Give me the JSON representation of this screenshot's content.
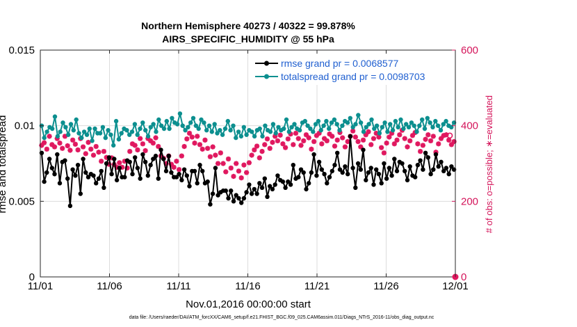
{
  "chart_data": {
    "type": "line",
    "title": [
      "Northern Hemisphere 40273 / 40322 = 99.878%",
      "AIRS_SPECIFIC_HUMIDITY @ 55 hPa"
    ],
    "xlabel": "Nov.01,2016 00:00:00 start",
    "ylabel": "rmse and totalspread",
    "ylabel_right": "# of obs: o=possible; ∗=evaluated",
    "footer": "data file: /Users/raeder/DAI/ATM_forcXX/CAM6_setup/f.e21.FHIST_BGC.f09_025.CAM6assim.011/Diags_NTrS_2016-11/obs_diag_output.nc",
    "x_ticks": [
      1,
      6,
      11,
      16,
      21,
      26,
      31
    ],
    "x_tick_labels": [
      "11/01",
      "11/06",
      "11/11",
      "11/16",
      "11/21",
      "11/26",
      "12/01"
    ],
    "xlim": [
      1,
      31
    ],
    "ylim": [
      0,
      0.015
    ],
    "y_ticks": [
      0,
      0.005,
      0.01,
      0.015
    ],
    "y_tick_labels": [
      "0",
      "0.005",
      "0.01",
      "0.015"
    ],
    "ylim_right": [
      0,
      600
    ],
    "y_ticks_right": [
      0,
      200,
      400,
      600
    ],
    "y_tick_labels_right": [
      "0",
      "200",
      "400",
      "600"
    ],
    "grid": true,
    "legend_position": "top-right",
    "series": [
      {
        "name": "rmse grand pr = 0.0068577",
        "color": "#000000",
        "axis": "left",
        "values": [
          0.0082,
          0.0063,
          0.0069,
          0.0078,
          0.0072,
          0.0068,
          0.0081,
          0.0062,
          0.0076,
          0.0077,
          0.0065,
          0.0047,
          0.0071,
          0.0067,
          0.0074,
          0.0055,
          0.0078,
          0.0069,
          0.0066,
          0.0068,
          0.0067,
          0.0062,
          0.0065,
          0.007,
          0.0059,
          0.0075,
          0.0079,
          0.0068,
          0.0078,
          0.0064,
          0.0072,
          0.0066,
          0.0066,
          0.0077,
          0.0076,
          0.0068,
          0.0079,
          0.0072,
          0.0065,
          0.0081,
          0.0076,
          0.0067,
          0.0074,
          0.0078,
          0.008,
          0.0065,
          0.0084,
          0.0078,
          0.007,
          0.008,
          0.0069,
          0.0066,
          0.0066,
          0.0068,
          0.0064,
          0.0071,
          0.0067,
          0.006,
          0.007,
          0.007,
          0.0062,
          0.0074,
          0.007,
          0.0062,
          0.0063,
          0.0048,
          0.0055,
          0.0072,
          0.0054,
          0.0056,
          0.0057,
          0.0057,
          0.0052,
          0.0057,
          0.005,
          0.0054,
          0.0052,
          0.0049,
          0.0052,
          0.0056,
          0.0061,
          0.0055,
          0.0058,
          0.0055,
          0.0062,
          0.0059,
          0.0065,
          0.0053,
          0.006,
          0.0058,
          0.0061,
          0.0067,
          0.0064,
          0.0063,
          0.0059,
          0.0063,
          0.0061,
          0.0074,
          0.0065,
          0.0066,
          0.0071,
          0.0069,
          0.0058,
          0.0062,
          0.0069,
          0.0081,
          0.0067,
          0.0076,
          0.0071,
          0.0068,
          0.0062,
          0.0066,
          0.007,
          0.0074,
          0.0082,
          0.0071,
          0.0069,
          0.0073,
          0.0068,
          0.0093,
          0.0072,
          0.0059,
          0.0075,
          0.0071,
          0.0084,
          0.0064,
          0.0069,
          0.0072,
          0.0061,
          0.0071,
          0.0068,
          0.0062,
          0.0075,
          0.0065,
          0.0072,
          0.0067,
          0.0078,
          0.007,
          0.0076,
          0.0075,
          0.007,
          0.0064,
          0.0073,
          0.0067,
          0.0066,
          0.0074,
          0.0077,
          0.0071,
          0.0082,
          0.0079,
          0.0068,
          0.0071,
          0.0081,
          0.0073,
          0.0076,
          0.007,
          0.0072,
          0.0068,
          0.0073,
          0.0071
        ]
      },
      {
        "name": "totalspread grand pr = 0.0098703",
        "color": "#0c8f8f",
        "axis": "left",
        "values": [
          0.01,
          0.0092,
          0.0096,
          0.0099,
          0.0098,
          0.0106,
          0.0093,
          0.0096,
          0.0102,
          0.0099,
          0.0094,
          0.0101,
          0.0097,
          0.0104,
          0.0095,
          0.0092,
          0.0096,
          0.0094,
          0.0098,
          0.009,
          0.0098,
          0.0095,
          0.0095,
          0.0099,
          0.0092,
          0.0097,
          0.0094,
          0.0087,
          0.0103,
          0.0091,
          0.0095,
          0.0098,
          0.0097,
          0.0094,
          0.0096,
          0.0101,
          0.0094,
          0.0098,
          0.0102,
          0.0097,
          0.0093,
          0.0099,
          0.0101,
          0.0096,
          0.0104,
          0.01,
          0.0098,
          0.0103,
          0.0098,
          0.0105,
          0.0102,
          0.0101,
          0.0108,
          0.01,
          0.0097,
          0.0099,
          0.0102,
          0.0105,
          0.01,
          0.0098,
          0.0104,
          0.0102,
          0.0097,
          0.01,
          0.0096,
          0.0101,
          0.0095,
          0.0097,
          0.0094,
          0.0098,
          0.0103,
          0.0097,
          0.01,
          0.0092,
          0.0096,
          0.0093,
          0.0099,
          0.0094,
          0.0097,
          0.0096,
          0.0093,
          0.0097,
          0.0098,
          0.0093,
          0.01,
          0.0097,
          0.0096,
          0.0101,
          0.0095,
          0.0099,
          0.0097,
          0.0098,
          0.0104,
          0.0096,
          0.0099,
          0.0101,
          0.0098,
          0.0097,
          0.0102,
          0.0103,
          0.01,
          0.0098,
          0.0096,
          0.0101,
          0.0103,
          0.0097,
          0.01,
          0.0103,
          0.0098,
          0.0102,
          0.0104,
          0.0101,
          0.0097,
          0.01,
          0.0103,
          0.0102,
          0.0105,
          0.0099,
          0.0101,
          0.0107,
          0.0102,
          0.0096,
          0.0099,
          0.0101,
          0.0104,
          0.0098,
          0.01,
          0.0095,
          0.0099,
          0.0102,
          0.0096,
          0.0101,
          0.0097,
          0.0103,
          0.0099,
          0.0104,
          0.0098,
          0.0101,
          0.0099,
          0.0102,
          0.01,
          0.0096,
          0.01,
          0.0104,
          0.0098,
          0.0105,
          0.0102,
          0.0099,
          0.0103,
          0.01,
          0.0097,
          0.0101,
          0.0103,
          0.01,
          0.0099,
          0.0102
        ]
      },
      {
        "name": "# of obs evaluated",
        "color": "#e0185f",
        "axis": "right",
        "marker": "star",
        "values": [
          348,
          355,
          338,
          372,
          350,
          344,
          366,
          354,
          340,
          372,
          347,
          335,
          362,
          351,
          336,
          366,
          344,
          326,
          356,
          338,
          322,
          345,
          330,
          306,
          332,
          316,
          298,
          315,
          297,
          290,
          302,
          290,
          306,
          288,
          332,
          352,
          348,
          336,
          366,
          352,
          334,
          366,
          360,
          354,
          368,
          345,
          320,
          314,
          300,
          320,
          298,
          290,
          306,
          284,
          320,
          345,
          365,
          380,
          370,
          354,
          372,
          350,
          338,
          362,
          340,
          318,
          344,
          322,
          300,
          328,
          300,
          278,
          312,
          288,
          266,
          300,
          280,
          262,
          296,
          276,
          302,
          322,
          336,
          346,
          315,
          332,
          350,
          365,
          340,
          356,
          372,
          360,
          375,
          352,
          342,
          365,
          378,
          350,
          380,
          366,
          348,
          360,
          376,
          368,
          338,
          358,
          374,
          380,
          352,
          366,
          360,
          378,
          372,
          346,
          362,
          382,
          368,
          344,
          358,
          372,
          386,
          370,
          358,
          344,
          362,
          376,
          384,
          350,
          366,
          380,
          370,
          342,
          328,
          354,
          370,
          380,
          352,
          362,
          376,
          388,
          366,
          344,
          360,
          374,
          382,
          352,
          332,
          348,
          364,
          376,
          360,
          372,
          330,
          352,
          366,
          374,
          376,
          362,
          350,
          358
        ]
      },
      {
        "name": "# of obs possible",
        "color": "#e0185f",
        "axis": "right",
        "marker": "circle",
        "x": [
          30.6,
          31
        ],
        "values": [
          374,
          0
        ]
      }
    ]
  }
}
